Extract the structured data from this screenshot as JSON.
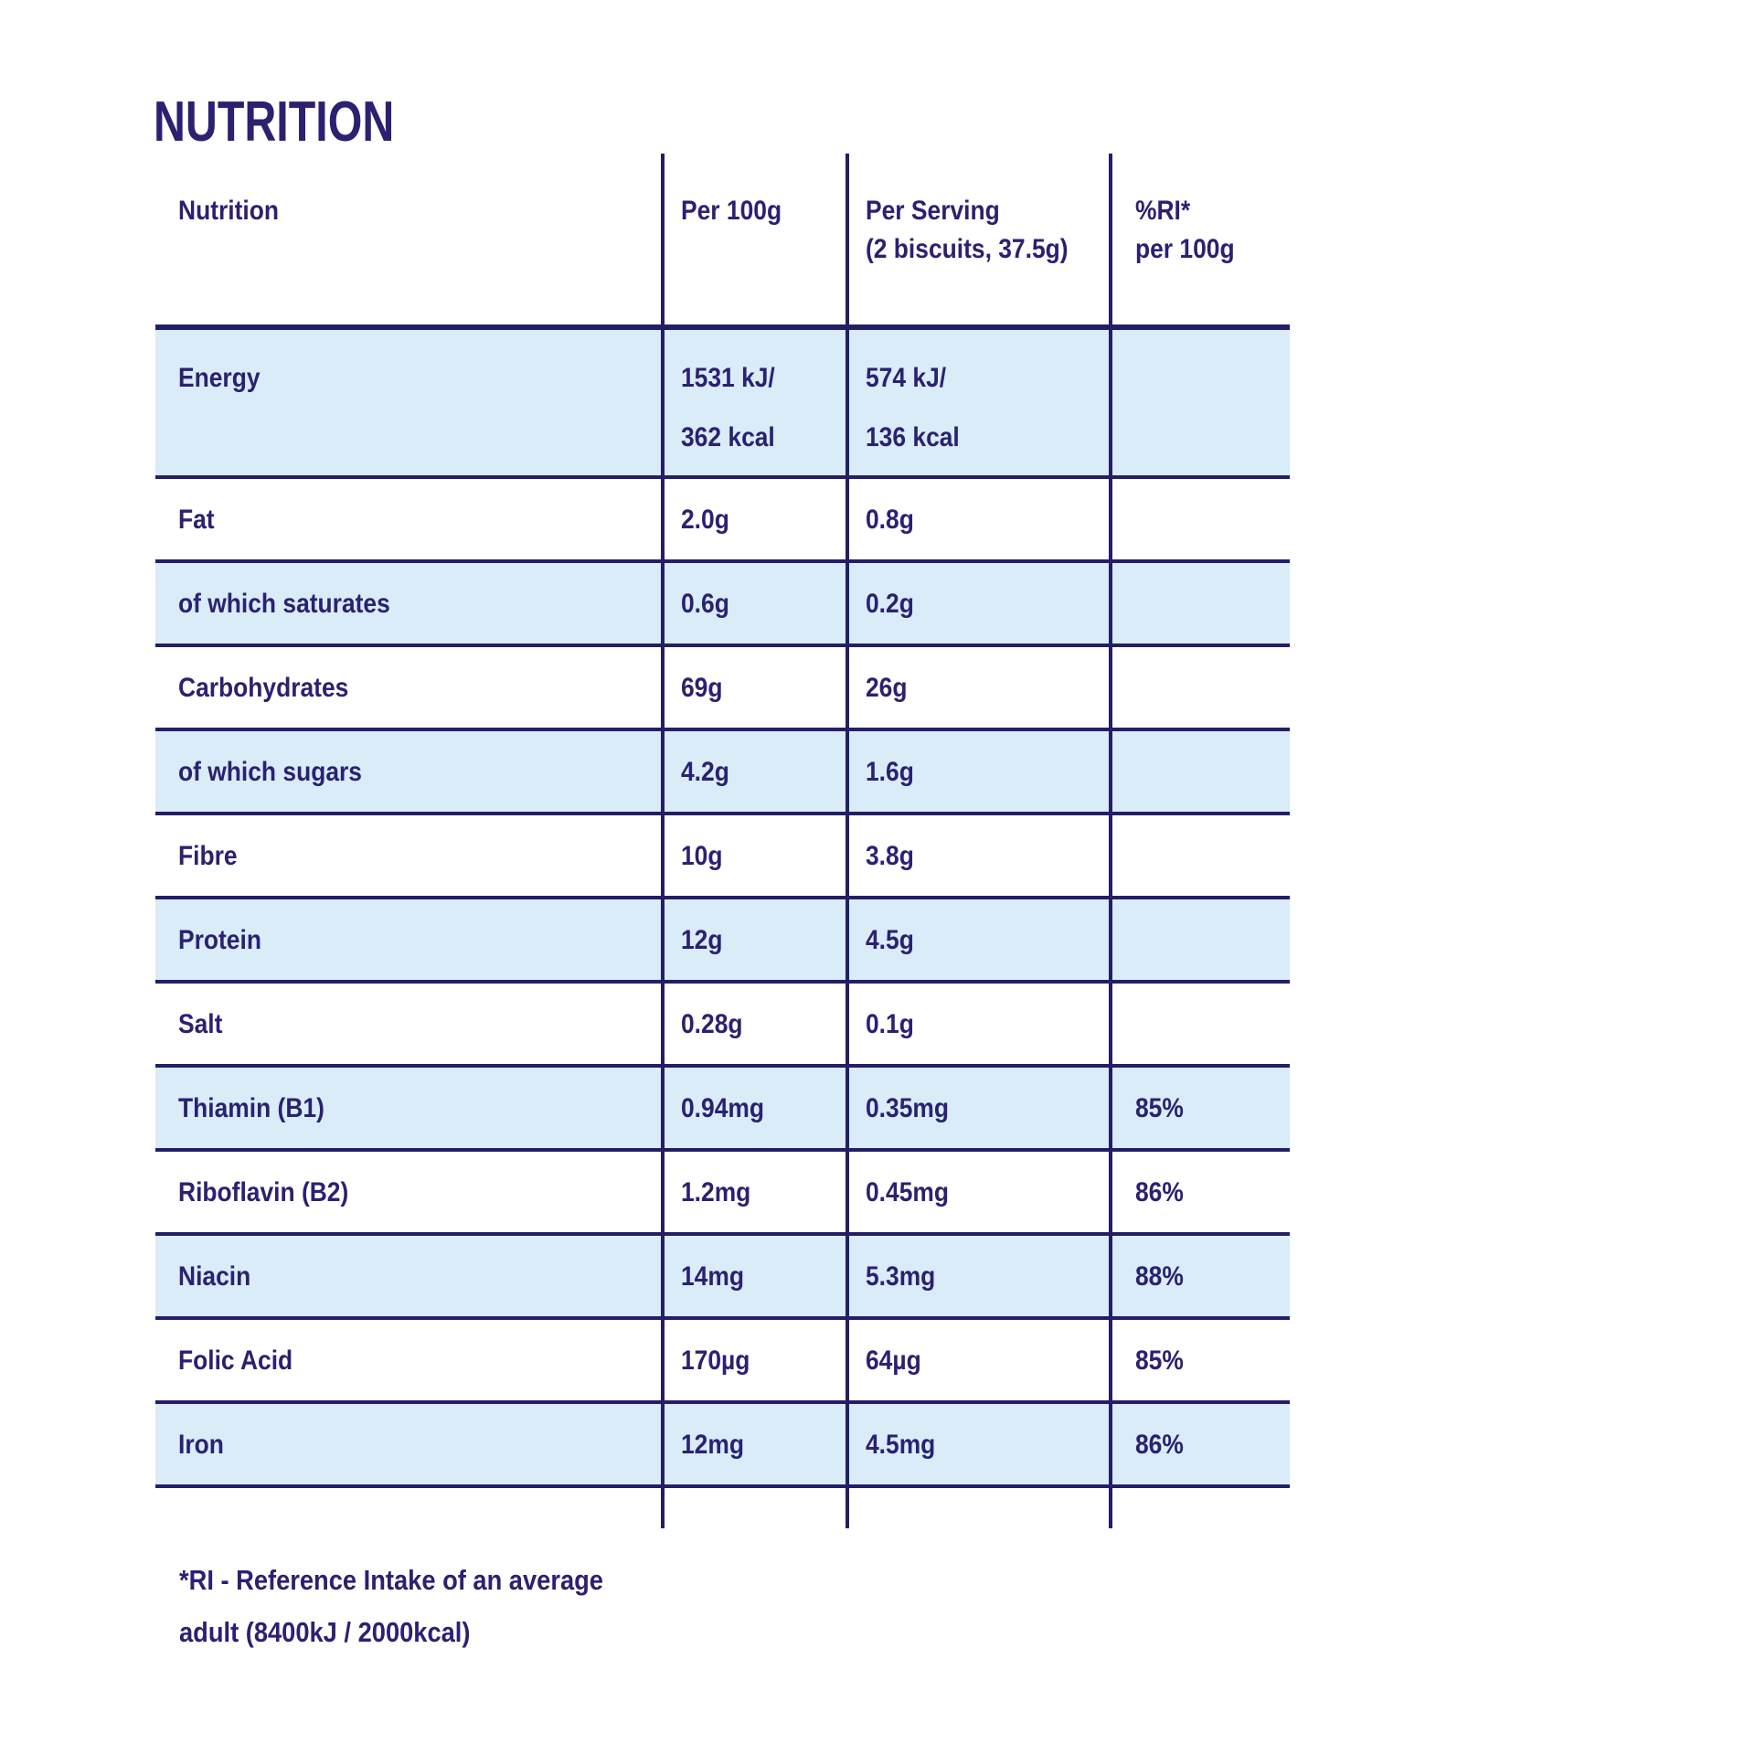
{
  "page": {
    "title": "NUTRITION",
    "footnote": {
      "line1": "*RI - Reference Intake of an average",
      "line2": "adult (8400kJ / 2000kcal)"
    }
  },
  "colors": {
    "text_navy": "#2B2171",
    "border_navy": "#241E66",
    "row_highlight_blue": "#D9ECF8",
    "row_white": "#FFFFFF"
  },
  "table": {
    "header": {
      "cols": [
        {
          "lines": [
            "Nutrition"
          ]
        },
        {
          "lines": [
            "Per 100g"
          ]
        },
        {
          "lines": [
            "Per Serving",
            "(2 biscuits, 37.5g)"
          ]
        },
        {
          "lines": [
            "%RI*",
            "per 100g"
          ]
        }
      ]
    },
    "rows": [
      {
        "id": "energy",
        "label": "Energy",
        "per_100g": [
          "1531 kJ/",
          "362 kcal"
        ],
        "per_serving": [
          "574 kJ/",
          "136 kcal"
        ],
        "ri_per_100g": [],
        "shade": "blue",
        "tall": true
      },
      {
        "id": "fat",
        "label": "Fat",
        "per_100g": [
          "2.0g"
        ],
        "per_serving": [
          "0.8g"
        ],
        "ri_per_100g": [],
        "shade": "white"
      },
      {
        "id": "saturates",
        "label": "of which saturates",
        "per_100g": [
          "0.6g"
        ],
        "per_serving": [
          "0.2g"
        ],
        "ri_per_100g": [],
        "shade": "blue"
      },
      {
        "id": "carbohydrates",
        "label": "Carbohydrates",
        "per_100g": [
          "69g"
        ],
        "per_serving": [
          "26g"
        ],
        "ri_per_100g": [],
        "shade": "white"
      },
      {
        "id": "sugars",
        "label": "of which sugars",
        "per_100g": [
          "4.2g"
        ],
        "per_serving": [
          "1.6g"
        ],
        "ri_per_100g": [],
        "shade": "blue"
      },
      {
        "id": "fibre",
        "label": "Fibre",
        "per_100g": [
          "10g"
        ],
        "per_serving": [
          "3.8g"
        ],
        "ri_per_100g": [],
        "shade": "white"
      },
      {
        "id": "protein",
        "label": "Protein",
        "per_100g": [
          "12g"
        ],
        "per_serving": [
          "4.5g"
        ],
        "ri_per_100g": [],
        "shade": "blue"
      },
      {
        "id": "salt",
        "label": "Salt",
        "per_100g": [
          "0.28g"
        ],
        "per_serving": [
          "0.1g"
        ],
        "ri_per_100g": [],
        "shade": "white"
      },
      {
        "id": "thiamin-b1",
        "label": "Thiamin (B1)",
        "per_100g": [
          "0.94mg"
        ],
        "per_serving": [
          "0.35mg"
        ],
        "ri_per_100g": [
          "85%"
        ],
        "shade": "blue"
      },
      {
        "id": "riboflavin-b2",
        "label": "Riboflavin (B2)",
        "per_100g": [
          "1.2mg"
        ],
        "per_serving": [
          "0.45mg"
        ],
        "ri_per_100g": [
          "86%"
        ],
        "shade": "white"
      },
      {
        "id": "niacin",
        "label": "Niacin",
        "per_100g": [
          "14mg"
        ],
        "per_serving": [
          "5.3mg"
        ],
        "ri_per_100g": [
          "88%"
        ],
        "shade": "blue"
      },
      {
        "id": "folic-acid",
        "label": "Folic Acid",
        "per_100g": [
          "170µg"
        ],
        "per_serving": [
          "64µg"
        ],
        "ri_per_100g": [
          "85%"
        ],
        "shade": "white"
      },
      {
        "id": "iron",
        "label": "Iron",
        "per_100g": [
          "12mg"
        ],
        "per_serving": [
          "4.5mg"
        ],
        "ri_per_100g": [
          "86%"
        ],
        "shade": "blue"
      }
    ]
  }
}
